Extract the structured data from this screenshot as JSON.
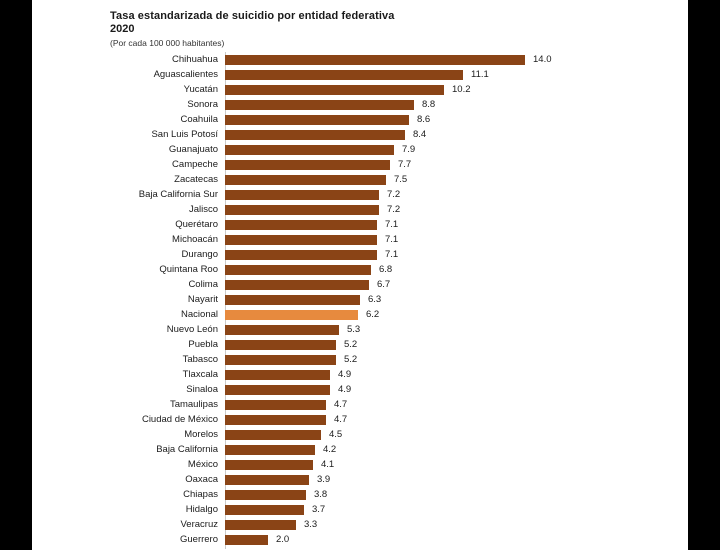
{
  "chart": {
    "title_line1": "Tasa estandarizada de suicidio por entidad federativa",
    "title_line2": "2020",
    "subtitle": "(Por cada 100 000 habitantes)"
  },
  "colors": {
    "bar": "#8A4416",
    "highlight": "#E78A3E",
    "background": "#ffffff",
    "letterbox": "#000000",
    "axis_line": "#c9c9c9"
  },
  "chart_data": {
    "type": "bar",
    "orientation": "horizontal",
    "title": "Tasa estandarizada de suicidio por entidad federativa 2020",
    "subtitle": "(Por cada 100 000 habitantes)",
    "xlabel": "",
    "ylabel": "",
    "xlim": [
      0,
      15
    ],
    "grid": false,
    "legend": false,
    "value_labels": true,
    "highlight_category": "Nacional",
    "categories": [
      "Chihuahua",
      "Aguascalientes",
      "Yucatán",
      "Sonora",
      "Coahuila",
      "San Luis Potosí",
      "Guanajuato",
      "Campeche",
      "Zacatecas",
      "Baja California Sur",
      "Jalisco",
      "Querétaro",
      "Michoacán",
      "Durango",
      "Quintana Roo",
      "Colima",
      "Nayarit",
      "Nacional",
      "Nuevo León",
      "Puebla",
      "Tabasco",
      "Tlaxcala",
      "Sinaloa",
      "Tamaulipas",
      "Ciudad de México",
      "Morelos",
      "Baja California",
      "México",
      "Oaxaca",
      "Chiapas",
      "Hidalgo",
      "Veracruz",
      "Guerrero"
    ],
    "values": [
      14.0,
      11.1,
      10.2,
      8.8,
      8.6,
      8.4,
      7.9,
      7.7,
      7.5,
      7.2,
      7.2,
      7.1,
      7.1,
      7.1,
      6.8,
      6.7,
      6.3,
      6.2,
      5.3,
      5.2,
      5.2,
      4.9,
      4.9,
      4.7,
      4.7,
      4.5,
      4.2,
      4.1,
      3.9,
      3.8,
      3.7,
      3.3,
      2.0
    ]
  }
}
